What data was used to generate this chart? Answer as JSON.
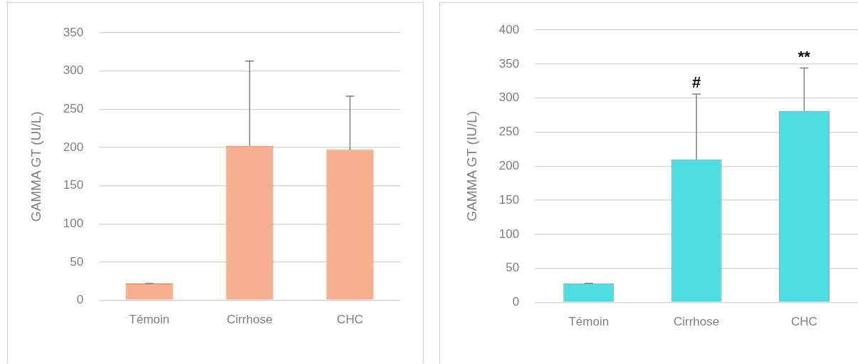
{
  "chart_data": [
    {
      "type": "bar",
      "ylabel": "GAMMA GT (UI/L)",
      "categories": [
        "Témoin",
        "Cirrhose",
        "CHC"
      ],
      "values": [
        22,
        202,
        197
      ],
      "color": "#f4b08f",
      "errors": [
        [
          22,
          22
        ],
        [
          202,
          313
        ],
        [
          197,
          267
        ]
      ],
      "ylim": [
        0,
        350
      ],
      "yticks": [
        0,
        50,
        100,
        150,
        200,
        250,
        300,
        350
      ],
      "grid": "y",
      "legend": false
    },
    {
      "type": "bar",
      "ylabel": "GAMMA GT (IU/L)",
      "categories": [
        "Témoin",
        "Cirrhose",
        "CHC"
      ],
      "values": [
        28,
        210,
        281
      ],
      "color": "#4ddde3",
      "errors": [
        [
          28,
          28
        ],
        [
          210,
          306
        ],
        [
          281,
          344
        ]
      ],
      "ylim": [
        0,
        400
      ],
      "yticks": [
        0,
        50,
        100,
        150,
        200,
        250,
        300,
        350,
        400
      ],
      "grid": "y",
      "legend": false,
      "annotations": [
        {
          "text": "#",
          "x": "Cirrhose",
          "y": 306
        },
        {
          "text": "**",
          "x": "CHC",
          "y": 344
        }
      ]
    }
  ]
}
